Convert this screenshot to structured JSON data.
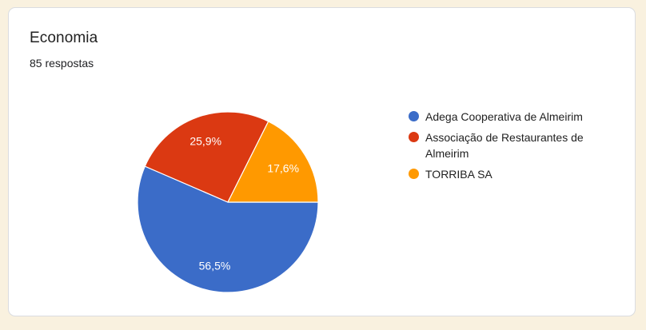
{
  "page": {
    "background_color": "#F9F1DF"
  },
  "card": {
    "background_color": "#FFFFFF",
    "border_color": "#DADCE0"
  },
  "chart_data": {
    "type": "pie",
    "title": "Economia",
    "subtitle": "85 respostas",
    "responses_total": 85,
    "start_angle_deg": 0,
    "direction": "clockwise",
    "legend_position": "right",
    "slice_border_color": "#FFFFFF",
    "label_color": "#FFFFFF",
    "label_radius_fraction": 0.72,
    "slices": [
      {
        "label": "Adega Cooperativa de Almeirim",
        "percent": 56.5,
        "percent_label": "56,5%",
        "color": "#3B6CC8"
      },
      {
        "label": "Associação de Restaurantes de Almeirim",
        "percent": 25.9,
        "percent_label": "25,9%",
        "color": "#DB3912"
      },
      {
        "label": "TORRIBA SA",
        "percent": 17.6,
        "percent_label": "17,6%",
        "color": "#FF9900"
      }
    ]
  }
}
